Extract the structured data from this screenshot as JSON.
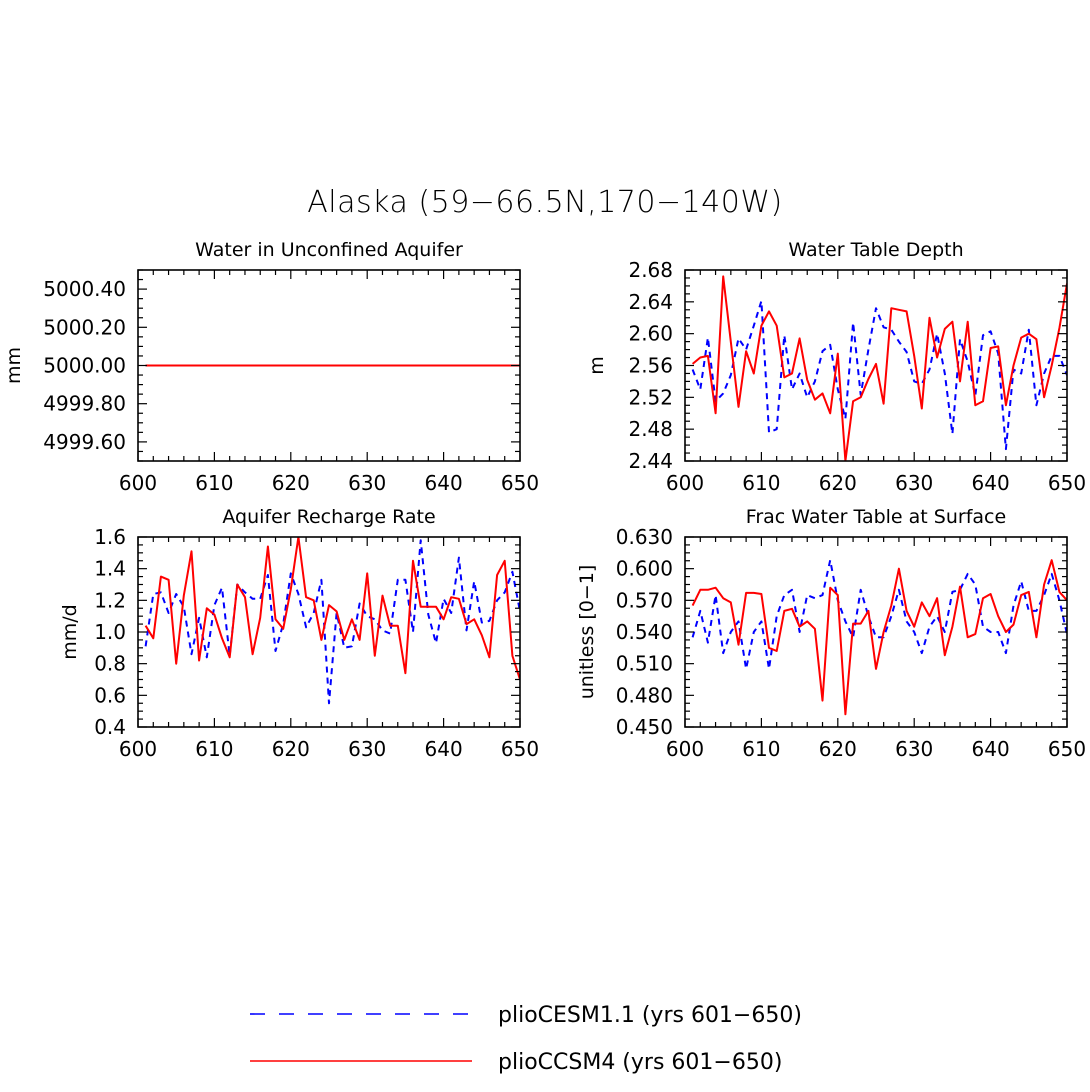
{
  "figure": {
    "title": "Alaska (59−66.5N,170−140W)"
  },
  "legend": {
    "placement": "bottom-center",
    "items": [
      {
        "label": "plioCESM1.1 (yrs 601−650)",
        "color": "#0000ff",
        "style": "dashed"
      },
      {
        "label": "plioCCSM4 (yrs 601−650)",
        "color": "#ff0000",
        "style": "solid"
      }
    ]
  },
  "colors": {
    "cesm": "#0000ff",
    "ccsm4": "#ff0000"
  },
  "chart_data": [
    {
      "type": "line",
      "title": "Water in Unconfined Aquifer",
      "xlabel": "",
      "ylabel": "mm",
      "xlim": [
        600,
        650
      ],
      "ylim": [
        4999.5,
        5000.5
      ],
      "xticks": [
        600,
        610,
        620,
        630,
        640,
        650
      ],
      "xtick_labels": [
        "600",
        "610",
        "620",
        "630",
        "640",
        "650"
      ],
      "yticks": [
        4999.6,
        4999.8,
        5000.0,
        5000.2,
        5000.4
      ],
      "ytick_labels": [
        "4999.60",
        "4999.80",
        "5000.00",
        "5000.20",
        "5000.40"
      ],
      "grid": false,
      "x": [
        601,
        602,
        603,
        604,
        605,
        606,
        607,
        608,
        609,
        610,
        611,
        612,
        613,
        614,
        615,
        616,
        617,
        618,
        619,
        620,
        621,
        622,
        623,
        624,
        625,
        626,
        627,
        628,
        629,
        630,
        631,
        632,
        633,
        634,
        635,
        636,
        637,
        638,
        639,
        640,
        641,
        642,
        643,
        644,
        645,
        646,
        647,
        648,
        649,
        650
      ],
      "series": [
        {
          "name": "plioCESM1.1 (yrs 601−650)",
          "values": [
            5000,
            5000,
            5000,
            5000,
            5000,
            5000,
            5000,
            5000,
            5000,
            5000,
            5000,
            5000,
            5000,
            5000,
            5000,
            5000,
            5000,
            5000,
            5000,
            5000,
            5000,
            5000,
            5000,
            5000,
            5000,
            5000,
            5000,
            5000,
            5000,
            5000,
            5000,
            5000,
            5000,
            5000,
            5000,
            5000,
            5000,
            5000,
            5000,
            5000,
            5000,
            5000,
            5000,
            5000,
            5000,
            5000,
            5000,
            5000,
            5000,
            5000
          ]
        },
        {
          "name": "plioCCSM4 (yrs 601−650)",
          "values": [
            5000,
            5000,
            5000,
            5000,
            5000,
            5000,
            5000,
            5000,
            5000,
            5000,
            5000,
            5000,
            5000,
            5000,
            5000,
            5000,
            5000,
            5000,
            5000,
            5000,
            5000,
            5000,
            5000,
            5000,
            5000,
            5000,
            5000,
            5000,
            5000,
            5000,
            5000,
            5000,
            5000,
            5000,
            5000,
            5000,
            5000,
            5000,
            5000,
            5000,
            5000,
            5000,
            5000,
            5000,
            5000,
            5000,
            5000,
            5000,
            5000,
            5000
          ]
        }
      ]
    },
    {
      "type": "line",
      "title": "Water Table Depth",
      "xlabel": "",
      "ylabel": "m",
      "xlim": [
        600,
        650
      ],
      "ylim": [
        2.44,
        2.68
      ],
      "xticks": [
        600,
        610,
        620,
        630,
        640,
        650
      ],
      "xtick_labels": [
        "600",
        "610",
        "620",
        "630",
        "640",
        "650"
      ],
      "yticks": [
        2.44,
        2.48,
        2.52,
        2.56,
        2.6,
        2.64,
        2.68
      ],
      "ytick_labels": [
        "2.44",
        "2.48",
        "2.52",
        "2.56",
        "2.60",
        "2.64",
        "2.68"
      ],
      "grid": false,
      "x": [
        601,
        602,
        603,
        604,
        605,
        606,
        607,
        608,
        609,
        610,
        611,
        612,
        613,
        614,
        615,
        616,
        617,
        618,
        619,
        620,
        621,
        622,
        623,
        624,
        625,
        626,
        627,
        628,
        629,
        630,
        631,
        632,
        633,
        634,
        635,
        636,
        637,
        638,
        639,
        640,
        641,
        642,
        643,
        644,
        645,
        646,
        647,
        648,
        649,
        650
      ],
      "series": [
        {
          "name": "plioCESM1.1 (yrs 601−650)",
          "values": [
            2.555,
            2.53,
            2.595,
            2.515,
            2.525,
            2.548,
            2.594,
            2.58,
            2.61,
            2.641,
            2.476,
            2.48,
            2.598,
            2.53,
            2.55,
            2.52,
            2.54,
            2.578,
            2.586,
            2.53,
            2.493,
            2.614,
            2.523,
            2.58,
            2.632,
            2.608,
            2.605,
            2.59,
            2.577,
            2.54,
            2.537,
            2.555,
            2.6,
            2.55,
            2.474,
            2.593,
            2.565,
            2.522,
            2.598,
            2.603,
            2.575,
            2.455,
            2.555,
            2.55,
            2.605,
            2.51,
            2.55,
            2.572,
            2.572,
            2.548
          ]
        },
        {
          "name": "plioCCSM4 (yrs 601−650)",
          "values": [
            2.562,
            2.57,
            2.572,
            2.5,
            2.672,
            2.59,
            2.508,
            2.578,
            2.55,
            2.61,
            2.628,
            2.61,
            2.545,
            2.55,
            2.594,
            2.542,
            2.517,
            2.525,
            2.5,
            2.575,
            2.44,
            2.515,
            2.52,
            2.543,
            2.562,
            2.512,
            2.632,
            2.63,
            2.628,
            2.572,
            2.506,
            2.62,
            2.57,
            2.606,
            2.615,
            2.54,
            2.615,
            2.51,
            2.515,
            2.582,
            2.584,
            2.51,
            2.56,
            2.595,
            2.6,
            2.593,
            2.52,
            2.56,
            2.607,
            2.663
          ]
        }
      ]
    },
    {
      "type": "line",
      "title": "Aquifer Recharge Rate",
      "xlabel": "",
      "ylabel": "mm/d",
      "xlim": [
        600,
        650
      ],
      "ylim": [
        0.4,
        1.6
      ],
      "xticks": [
        600,
        610,
        620,
        630,
        640,
        650
      ],
      "xtick_labels": [
        "600",
        "610",
        "620",
        "630",
        "640",
        "650"
      ],
      "yticks": [
        0.4,
        0.6,
        0.8,
        1.0,
        1.2,
        1.4,
        1.6
      ],
      "ytick_labels": [
        "0.4",
        "0.6",
        "0.8",
        "1.0",
        "1.2",
        "1.4",
        "1.6"
      ],
      "grid": false,
      "x": [
        601,
        602,
        603,
        604,
        605,
        606,
        607,
        608,
        609,
        610,
        611,
        612,
        613,
        614,
        615,
        616,
        617,
        618,
        619,
        620,
        621,
        622,
        623,
        624,
        625,
        626,
        627,
        628,
        629,
        630,
        631,
        632,
        633,
        634,
        635,
        636,
        637,
        638,
        639,
        640,
        641,
        642,
        643,
        644,
        645,
        646,
        647,
        648,
        649,
        650
      ],
      "series": [
        {
          "name": "plioCESM1.1 (yrs 601−650)",
          "values": [
            0.91,
            1.24,
            1.25,
            1.12,
            1.24,
            1.16,
            0.86,
            1.09,
            0.84,
            1.17,
            1.28,
            0.85,
            1.3,
            1.25,
            1.21,
            1.21,
            1.36,
            0.88,
            1.05,
            1.37,
            1.24,
            1.03,
            1.12,
            1.33,
            0.55,
            1.12,
            0.9,
            0.91,
            1.18,
            1.1,
            1.08,
            1.01,
            0.99,
            1.33,
            1.33,
            1.0,
            1.58,
            1.11,
            0.93,
            1.21,
            1.12,
            1.47,
            1.01,
            1.32,
            1.06,
            1.07,
            1.2,
            1.25,
            1.38,
            1.13
          ]
        },
        {
          "name": "plioCCSM4 (yrs 601−650)",
          "values": [
            1.04,
            0.96,
            1.35,
            1.33,
            0.8,
            1.23,
            1.51,
            0.82,
            1.15,
            1.11,
            0.96,
            0.84,
            1.3,
            1.22,
            0.86,
            1.09,
            1.54,
            1.08,
            1.02,
            1.27,
            1.6,
            1.22,
            1.2,
            0.95,
            1.17,
            1.13,
            0.95,
            1.08,
            0.95,
            1.37,
            0.85,
            1.23,
            1.04,
            1.04,
            0.74,
            1.45,
            1.16,
            1.16,
            1.16,
            1.08,
            1.22,
            1.21,
            1.05,
            1.08,
            0.98,
            0.84,
            1.36,
            1.45,
            0.85,
            0.7
          ]
        }
      ]
    },
    {
      "type": "line",
      "title": "Frac Water Table at Surface",
      "xlabel": "",
      "ylabel": "unitless [0−1]",
      "xlim": [
        600,
        650
      ],
      "ylim": [
        0.45,
        0.63
      ],
      "xticks": [
        600,
        610,
        620,
        630,
        640,
        650
      ],
      "xtick_labels": [
        "600",
        "610",
        "620",
        "630",
        "640",
        "650"
      ],
      "yticks": [
        0.45,
        0.48,
        0.51,
        0.54,
        0.57,
        0.6,
        0.63
      ],
      "ytick_labels": [
        "0.450",
        "0.480",
        "0.510",
        "0.540",
        "0.570",
        "0.600",
        "0.630"
      ],
      "grid": false,
      "x": [
        601,
        602,
        603,
        604,
        605,
        606,
        607,
        608,
        609,
        610,
        611,
        612,
        613,
        614,
        615,
        616,
        617,
        618,
        619,
        620,
        621,
        622,
        623,
        624,
        625,
        626,
        627,
        628,
        629,
        630,
        631,
        632,
        633,
        634,
        635,
        636,
        637,
        638,
        639,
        640,
        641,
        642,
        643,
        644,
        645,
        646,
        647,
        648,
        649,
        650
      ],
      "series": [
        {
          "name": "plioCESM1.1 (yrs 601−650)",
          "values": [
            0.535,
            0.56,
            0.53,
            0.575,
            0.52,
            0.54,
            0.55,
            0.505,
            0.54,
            0.55,
            0.505,
            0.555,
            0.575,
            0.58,
            0.54,
            0.575,
            0.572,
            0.575,
            0.608,
            0.57,
            0.55,
            0.535,
            0.58,
            0.555,
            0.535,
            0.535,
            0.555,
            0.58,
            0.55,
            0.54,
            0.52,
            0.545,
            0.555,
            0.54,
            0.578,
            0.58,
            0.595,
            0.585,
            0.545,
            0.54,
            0.54,
            0.52,
            0.565,
            0.588,
            0.56,
            0.56,
            0.575,
            0.595,
            0.57,
            0.538
          ]
        },
        {
          "name": "plioCCSM4 (yrs 601−650)",
          "values": [
            0.565,
            0.58,
            0.58,
            0.582,
            0.572,
            0.568,
            0.528,
            0.577,
            0.577,
            0.576,
            0.525,
            0.522,
            0.56,
            0.562,
            0.545,
            0.55,
            0.543,
            0.475,
            0.582,
            0.575,
            0.462,
            0.548,
            0.548,
            0.56,
            0.505,
            0.54,
            0.565,
            0.6,
            0.56,
            0.545,
            0.568,
            0.555,
            0.572,
            0.518,
            0.545,
            0.583,
            0.535,
            0.538,
            0.572,
            0.576,
            0.555,
            0.54,
            0.547,
            0.575,
            0.578,
            0.535,
            0.585,
            0.608,
            0.578,
            0.57
          ]
        }
      ]
    }
  ]
}
